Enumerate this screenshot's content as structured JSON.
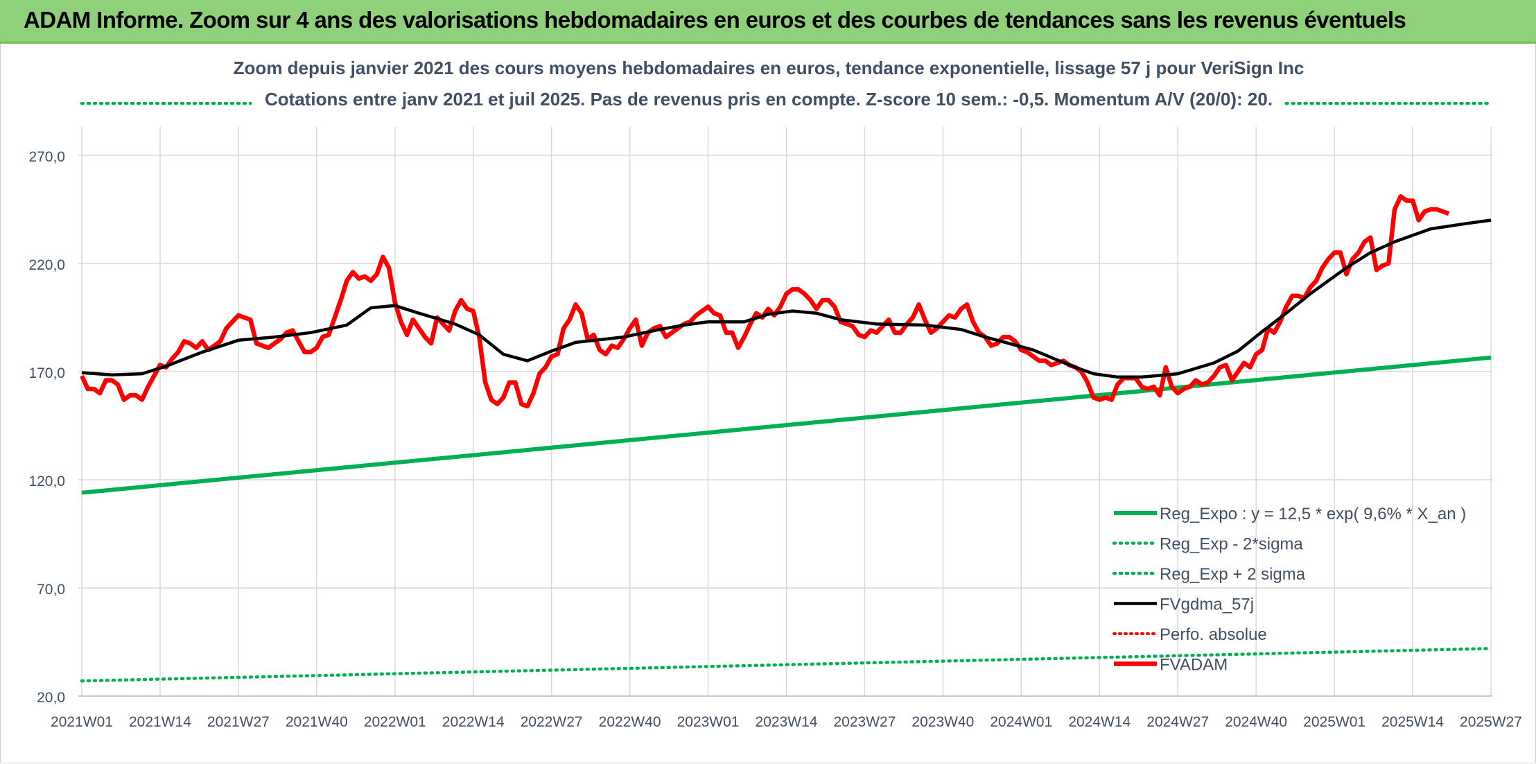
{
  "page_title": "ADAM Informe. Zoom sur 4 ans des valorisations hebdomadaires en euros et des courbes de tendances sans les revenus éventuels",
  "chart_data": {
    "type": "line",
    "title": "Zoom depuis janvier 2021 des cours moyens hebdomadaires en euros, tendance exponentielle, lissage 57 j pour VeriSign Inc",
    "subtitle": "Cotations entre janv 2021 et juil 2025. Pas de revenus pris en compte. Z-score 10 sem.: -0,5. Momentum A/V (20/0): 20.",
    "xlabel": "",
    "ylabel": "",
    "ylim": [
      20,
      290
    ],
    "yticks": [
      "270,0",
      "220,0",
      "170,0",
      "120,0",
      "70,0",
      "20,0"
    ],
    "ytick_values": [
      270,
      220,
      170,
      120,
      70,
      20
    ],
    "xtick_labels": [
      "2021W01",
      "2021W14",
      "2021W27",
      "2021W40",
      "2022W01",
      "2022W14",
      "2022W27",
      "2022W40",
      "2023W01",
      "2023W14",
      "2023W27",
      "2023W40",
      "2024W01",
      "2024W14",
      "2024W27",
      "2024W40",
      "2025W01",
      "2025W14",
      "2025W27"
    ],
    "x_range_weeks": [
      0,
      234
    ],
    "grid": true,
    "legend_position": "bottom-right",
    "series": [
      {
        "name": "Reg_Expo : y = 12,5 * exp( 9,6% *  X_an )",
        "color": "#00b050",
        "style": "solid",
        "points": [
          [
            0,
            114
          ],
          [
            234,
            176.5
          ]
        ]
      },
      {
        "name": "Reg_Exp - 2*sigma",
        "color": "#00b050",
        "style": "dotted",
        "points": [
          [
            0,
            27
          ],
          [
            234,
            42
          ]
        ]
      },
      {
        "name": "Reg_Exp + 2 sigma",
        "color": "#00b050",
        "style": "dotted",
        "points": [
          [
            0,
            294
          ],
          [
            28,
            294
          ]
        ],
        "points_right": [
          [
            200,
            294
          ],
          [
            234,
            294
          ]
        ]
      },
      {
        "name": "FVgdma_57j",
        "color": "#000000",
        "style": "solid",
        "points": [
          [
            0,
            169.5
          ],
          [
            5,
            168.5
          ],
          [
            10,
            169
          ],
          [
            14,
            172.5
          ],
          [
            20,
            179
          ],
          [
            26,
            184.5
          ],
          [
            32,
            186
          ],
          [
            38,
            188
          ],
          [
            44,
            191.5
          ],
          [
            48,
            199.5
          ],
          [
            52,
            200.5
          ],
          [
            56,
            197
          ],
          [
            62,
            192
          ],
          [
            66,
            187
          ],
          [
            70,
            178
          ],
          [
            74,
            175
          ],
          [
            78,
            179.5
          ],
          [
            82,
            183.5
          ],
          [
            90,
            186
          ],
          [
            96,
            189.5
          ],
          [
            100,
            191.5
          ],
          [
            104,
            193
          ],
          [
            110,
            193
          ],
          [
            114,
            196.5
          ],
          [
            118,
            198
          ],
          [
            122,
            197
          ],
          [
            126,
            194
          ],
          [
            132,
            192
          ],
          [
            140,
            191.5
          ],
          [
            146,
            189.5
          ],
          [
            150,
            186
          ],
          [
            158,
            180
          ],
          [
            164,
            173
          ],
          [
            168,
            169
          ],
          [
            172,
            167.5
          ],
          [
            176,
            167.5
          ],
          [
            182,
            169
          ],
          [
            188,
            174
          ],
          [
            192,
            179.5
          ],
          [
            196,
            188.5
          ],
          [
            200,
            197
          ],
          [
            204,
            206
          ],
          [
            210,
            218
          ],
          [
            214,
            225
          ],
          [
            218,
            230
          ],
          [
            224,
            236
          ],
          [
            230,
            238.5
          ],
          [
            234,
            240
          ]
        ]
      },
      {
        "name": "Perfo. absolue",
        "color": "#ff0000",
        "style": "dotted",
        "points": []
      },
      {
        "name": "FVADAM",
        "color": "#ff0000",
        "style": "solid",
        "points": [
          [
            0,
            168
          ],
          [
            1,
            162
          ],
          [
            2,
            162
          ],
          [
            3,
            160
          ],
          [
            4,
            166
          ],
          [
            5,
            166
          ],
          [
            6,
            164
          ],
          [
            7,
            157
          ],
          [
            8,
            159
          ],
          [
            9,
            159
          ],
          [
            10,
            157
          ],
          [
            11,
            163
          ],
          [
            12,
            168
          ],
          [
            13,
            173
          ],
          [
            14,
            172
          ],
          [
            15,
            176
          ],
          [
            16,
            179
          ],
          [
            17,
            184
          ],
          [
            18,
            183
          ],
          [
            19,
            181
          ],
          [
            20,
            184
          ],
          [
            21,
            180
          ],
          [
            22,
            182
          ],
          [
            23,
            184
          ],
          [
            24,
            190
          ],
          [
            25,
            193
          ],
          [
            26,
            196
          ],
          [
            27,
            195
          ],
          [
            28,
            194
          ],
          [
            29,
            183
          ],
          [
            30,
            182
          ],
          [
            31,
            181
          ],
          [
            32,
            183
          ],
          [
            33,
            185
          ],
          [
            34,
            188
          ],
          [
            35,
            189
          ],
          [
            36,
            184
          ],
          [
            37,
            179
          ],
          [
            38,
            179
          ],
          [
            39,
            181
          ],
          [
            40,
            186
          ],
          [
            41,
            187
          ],
          [
            42,
            195
          ],
          [
            43,
            203
          ],
          [
            44,
            212
          ],
          [
            45,
            216
          ],
          [
            46,
            213
          ],
          [
            47,
            214
          ],
          [
            48,
            212
          ],
          [
            49,
            215
          ],
          [
            50,
            223
          ],
          [
            51,
            218
          ],
          [
            52,
            202
          ],
          [
            53,
            193
          ],
          [
            54,
            187
          ],
          [
            55,
            194
          ],
          [
            56,
            190
          ],
          [
            57,
            186
          ],
          [
            58,
            183
          ],
          [
            59,
            195
          ],
          [
            60,
            192
          ],
          [
            61,
            189
          ],
          [
            62,
            198
          ],
          [
            63,
            203
          ],
          [
            64,
            199
          ],
          [
            65,
            198
          ],
          [
            66,
            186
          ],
          [
            67,
            165
          ],
          [
            68,
            157
          ],
          [
            69,
            155
          ],
          [
            70,
            158
          ],
          [
            71,
            165
          ],
          [
            72,
            165
          ],
          [
            73,
            155
          ],
          [
            74,
            154
          ],
          [
            75,
            160
          ],
          [
            76,
            169
          ],
          [
            77,
            172
          ],
          [
            78,
            177
          ],
          [
            79,
            178
          ],
          [
            80,
            190
          ],
          [
            81,
            194
          ],
          [
            82,
            201
          ],
          [
            83,
            197
          ],
          [
            84,
            185
          ],
          [
            85,
            187
          ],
          [
            86,
            180
          ],
          [
            87,
            178
          ],
          [
            88,
            182
          ],
          [
            89,
            181
          ],
          [
            90,
            185
          ],
          [
            91,
            190
          ],
          [
            92,
            194
          ],
          [
            93,
            182
          ],
          [
            94,
            188
          ],
          [
            95,
            190
          ],
          [
            96,
            191
          ],
          [
            97,
            186
          ],
          [
            98,
            188
          ],
          [
            99,
            190
          ],
          [
            100,
            192
          ],
          [
            101,
            193
          ],
          [
            102,
            196
          ],
          [
            103,
            198
          ],
          [
            104,
            200
          ],
          [
            105,
            197
          ],
          [
            106,
            196
          ],
          [
            107,
            188
          ],
          [
            108,
            188
          ],
          [
            109,
            181
          ],
          [
            110,
            186
          ],
          [
            111,
            192
          ],
          [
            112,
            197
          ],
          [
            113,
            195
          ],
          [
            114,
            199
          ],
          [
            115,
            196
          ],
          [
            116,
            200
          ],
          [
            117,
            206
          ],
          [
            118,
            208
          ],
          [
            119,
            208
          ],
          [
            120,
            206
          ],
          [
            121,
            203
          ],
          [
            122,
            199
          ],
          [
            123,
            203
          ],
          [
            124,
            203
          ],
          [
            125,
            200
          ],
          [
            126,
            193
          ],
          [
            127,
            192
          ],
          [
            128,
            191
          ],
          [
            129,
            187
          ],
          [
            130,
            186
          ],
          [
            131,
            189
          ],
          [
            132,
            188
          ],
          [
            133,
            191
          ],
          [
            134,
            194
          ],
          [
            135,
            188
          ],
          [
            136,
            188
          ],
          [
            137,
            192
          ],
          [
            138,
            195
          ],
          [
            139,
            201
          ],
          [
            140,
            194
          ],
          [
            141,
            188
          ],
          [
            142,
            190
          ],
          [
            143,
            193
          ],
          [
            144,
            196
          ],
          [
            145,
            195
          ],
          [
            146,
            199
          ],
          [
            147,
            201
          ],
          [
            148,
            193
          ],
          [
            149,
            188
          ],
          [
            150,
            186
          ],
          [
            151,
            182
          ],
          [
            152,
            183
          ],
          [
            153,
            186
          ],
          [
            154,
            186
          ],
          [
            155,
            184
          ],
          [
            156,
            180
          ],
          [
            157,
            179
          ],
          [
            158,
            177
          ],
          [
            159,
            175
          ],
          [
            160,
            175
          ],
          [
            161,
            173
          ],
          [
            162,
            174
          ],
          [
            163,
            175
          ],
          [
            164,
            173
          ],
          [
            165,
            172
          ],
          [
            166,
            170
          ],
          [
            167,
            165
          ],
          [
            168,
            158
          ],
          [
            169,
            157
          ],
          [
            170,
            158
          ],
          [
            171,
            157
          ],
          [
            172,
            164
          ],
          [
            173,
            167
          ],
          [
            174,
            167
          ],
          [
            175,
            167
          ],
          [
            176,
            163
          ],
          [
            177,
            162
          ],
          [
            178,
            163
          ],
          [
            179,
            159
          ],
          [
            180,
            172
          ],
          [
            181,
            163
          ],
          [
            182,
            160
          ],
          [
            183,
            162
          ],
          [
            184,
            163
          ],
          [
            185,
            166
          ],
          [
            186,
            164
          ],
          [
            187,
            165
          ],
          [
            188,
            168
          ],
          [
            189,
            172
          ],
          [
            190,
            173
          ],
          [
            191,
            166
          ],
          [
            192,
            170
          ],
          [
            193,
            174
          ],
          [
            194,
            172
          ],
          [
            195,
            178
          ],
          [
            196,
            180
          ],
          [
            197,
            190
          ],
          [
            198,
            188
          ],
          [
            199,
            193
          ],
          [
            200,
            200
          ],
          [
            201,
            205
          ],
          [
            202,
            205
          ],
          [
            203,
            204
          ],
          [
            204,
            209
          ],
          [
            205,
            212
          ],
          [
            206,
            218
          ],
          [
            207,
            222
          ],
          [
            208,
            225
          ],
          [
            209,
            225
          ],
          [
            210,
            215
          ],
          [
            211,
            222
          ],
          [
            212,
            225
          ],
          [
            213,
            230
          ],
          [
            214,
            232
          ],
          [
            215,
            217
          ],
          [
            216,
            219
          ],
          [
            217,
            220
          ],
          [
            218,
            245
          ],
          [
            219,
            251
          ],
          [
            220,
            249
          ],
          [
            221,
            249
          ],
          [
            222,
            240
          ],
          [
            223,
            244
          ],
          [
            224,
            245
          ],
          [
            225,
            245
          ],
          [
            226,
            244
          ],
          [
            227,
            243
          ]
        ]
      }
    ]
  }
}
